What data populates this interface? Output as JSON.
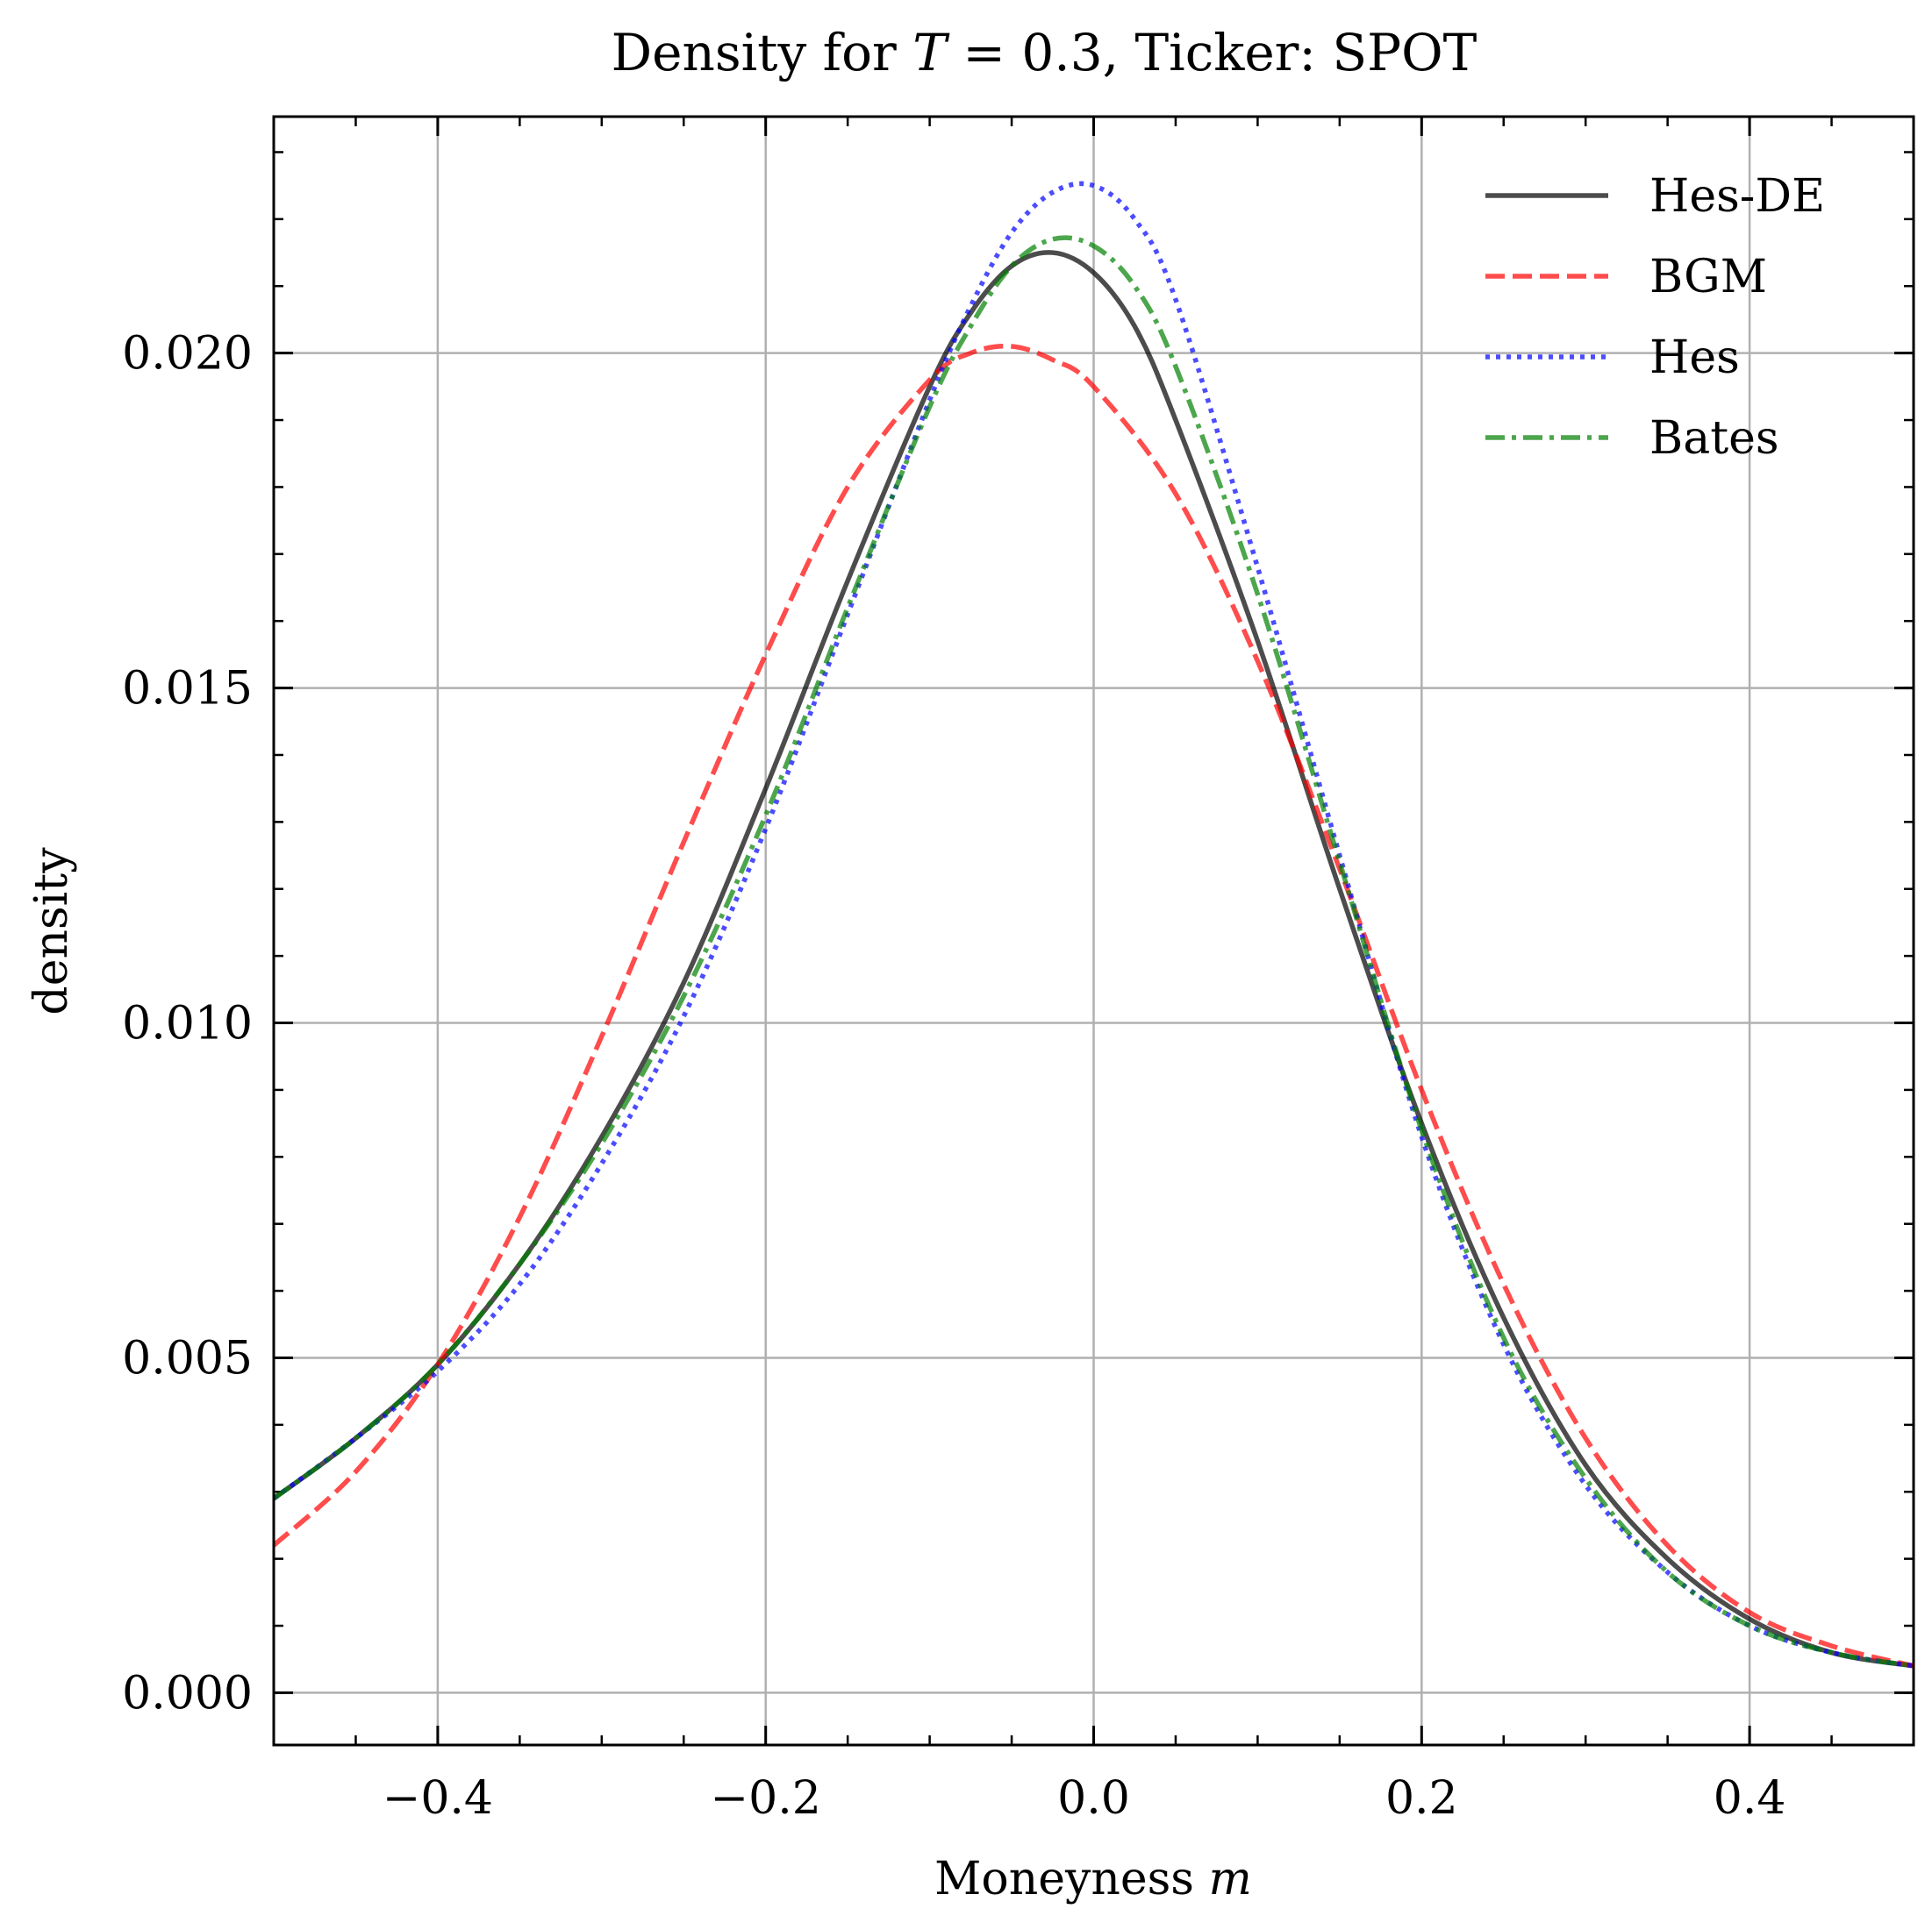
{
  "chart_data": {
    "type": "line",
    "title_parts": {
      "prefix": "Density for ",
      "var": "T",
      "equals": " = 0.3, Ticker: SPOT"
    },
    "xlabel_parts": {
      "text": "Moneyness ",
      "var": "m"
    },
    "ylabel": "density",
    "xlim": [
      -0.5,
      0.5
    ],
    "ylim": [
      -0.00078,
      0.02353
    ],
    "x_ticks": [
      {
        "value": -0.4,
        "label": "−0.4"
      },
      {
        "value": -0.2,
        "label": "−0.2"
      },
      {
        "value": 0.0,
        "label": "0.0"
      },
      {
        "value": 0.2,
        "label": "0.2"
      },
      {
        "value": 0.4,
        "label": "0.4"
      }
    ],
    "y_ticks": [
      {
        "value": 0.0,
        "label": "0.000"
      },
      {
        "value": 0.005,
        "label": "0.005"
      },
      {
        "value": 0.01,
        "label": "0.010"
      },
      {
        "value": 0.015,
        "label": "0.015"
      },
      {
        "value": 0.02,
        "label": "0.020"
      }
    ],
    "grid": true,
    "legend_position": "top-right",
    "series": [
      {
        "name": "Hes-DE",
        "color": "#000000",
        "style": "solid",
        "x": [
          -0.5,
          -0.45,
          -0.4,
          -0.35,
          -0.3,
          -0.25,
          -0.2,
          -0.15,
          -0.1,
          -0.075,
          -0.05,
          -0.025,
          0.0,
          0.025,
          0.05,
          0.1,
          0.15,
          0.2,
          0.25,
          0.3,
          0.35,
          0.4,
          0.45,
          0.5
        ],
        "y": [
          0.0029,
          0.0038,
          0.0049,
          0.0064,
          0.0083,
          0.0106,
          0.0135,
          0.0166,
          0.0195,
          0.0206,
          0.0213,
          0.0215,
          0.0212,
          0.0204,
          0.019,
          0.0157,
          0.012,
          0.0085,
          0.0056,
          0.0034,
          0.002,
          0.0011,
          0.0006,
          0.0004
        ]
      },
      {
        "name": "BGM",
        "color": "#ff0000",
        "style": "dashed",
        "x": [
          -0.5,
          -0.45,
          -0.4,
          -0.35,
          -0.3,
          -0.25,
          -0.2,
          -0.15,
          -0.1,
          -0.075,
          -0.05,
          -0.025,
          0.0,
          0.05,
          0.1,
          0.15,
          0.2,
          0.25,
          0.3,
          0.35,
          0.4,
          0.45,
          0.5
        ],
        "y": [
          0.0022,
          0.0033,
          0.0049,
          0.0071,
          0.0098,
          0.0127,
          0.0155,
          0.018,
          0.0196,
          0.02,
          0.0201,
          0.0199,
          0.0195,
          0.0179,
          0.0154,
          0.0123,
          0.009,
          0.0061,
          0.0038,
          0.0022,
          0.0012,
          0.0007,
          0.0004
        ]
      },
      {
        "name": "Hes",
        "color": "#0000ff",
        "style": "dotted",
        "x": [
          -0.5,
          -0.45,
          -0.4,
          -0.35,
          -0.3,
          -0.25,
          -0.2,
          -0.15,
          -0.1,
          -0.075,
          -0.05,
          -0.025,
          0.0,
          0.025,
          0.05,
          0.1,
          0.15,
          0.2,
          0.25,
          0.3,
          0.35,
          0.4,
          0.45,
          0.5
        ],
        "y": [
          0.0029,
          0.0038,
          0.0048,
          0.0061,
          0.0079,
          0.0101,
          0.0129,
          0.0161,
          0.0193,
          0.0207,
          0.0218,
          0.0224,
          0.0225,
          0.022,
          0.0208,
          0.0168,
          0.0125,
          0.0083,
          0.0052,
          0.0031,
          0.0018,
          0.001,
          0.0006,
          0.0004
        ]
      },
      {
        "name": "Bates",
        "color": "#008000",
        "style": "dashdot",
        "x": [
          -0.5,
          -0.45,
          -0.4,
          -0.35,
          -0.3,
          -0.25,
          -0.2,
          -0.15,
          -0.1,
          -0.075,
          -0.05,
          -0.025,
          0.0,
          0.025,
          0.05,
          0.1,
          0.15,
          0.2,
          0.25,
          0.3,
          0.35,
          0.4,
          0.45,
          0.5
        ],
        "y": [
          0.0029,
          0.0038,
          0.0049,
          0.0064,
          0.0082,
          0.0104,
          0.0131,
          0.0162,
          0.0192,
          0.0204,
          0.0213,
          0.0217,
          0.0216,
          0.021,
          0.0198,
          0.0164,
          0.0124,
          0.0084,
          0.0053,
          0.0032,
          0.0018,
          0.001,
          0.0006,
          0.0004
        ]
      }
    ]
  }
}
